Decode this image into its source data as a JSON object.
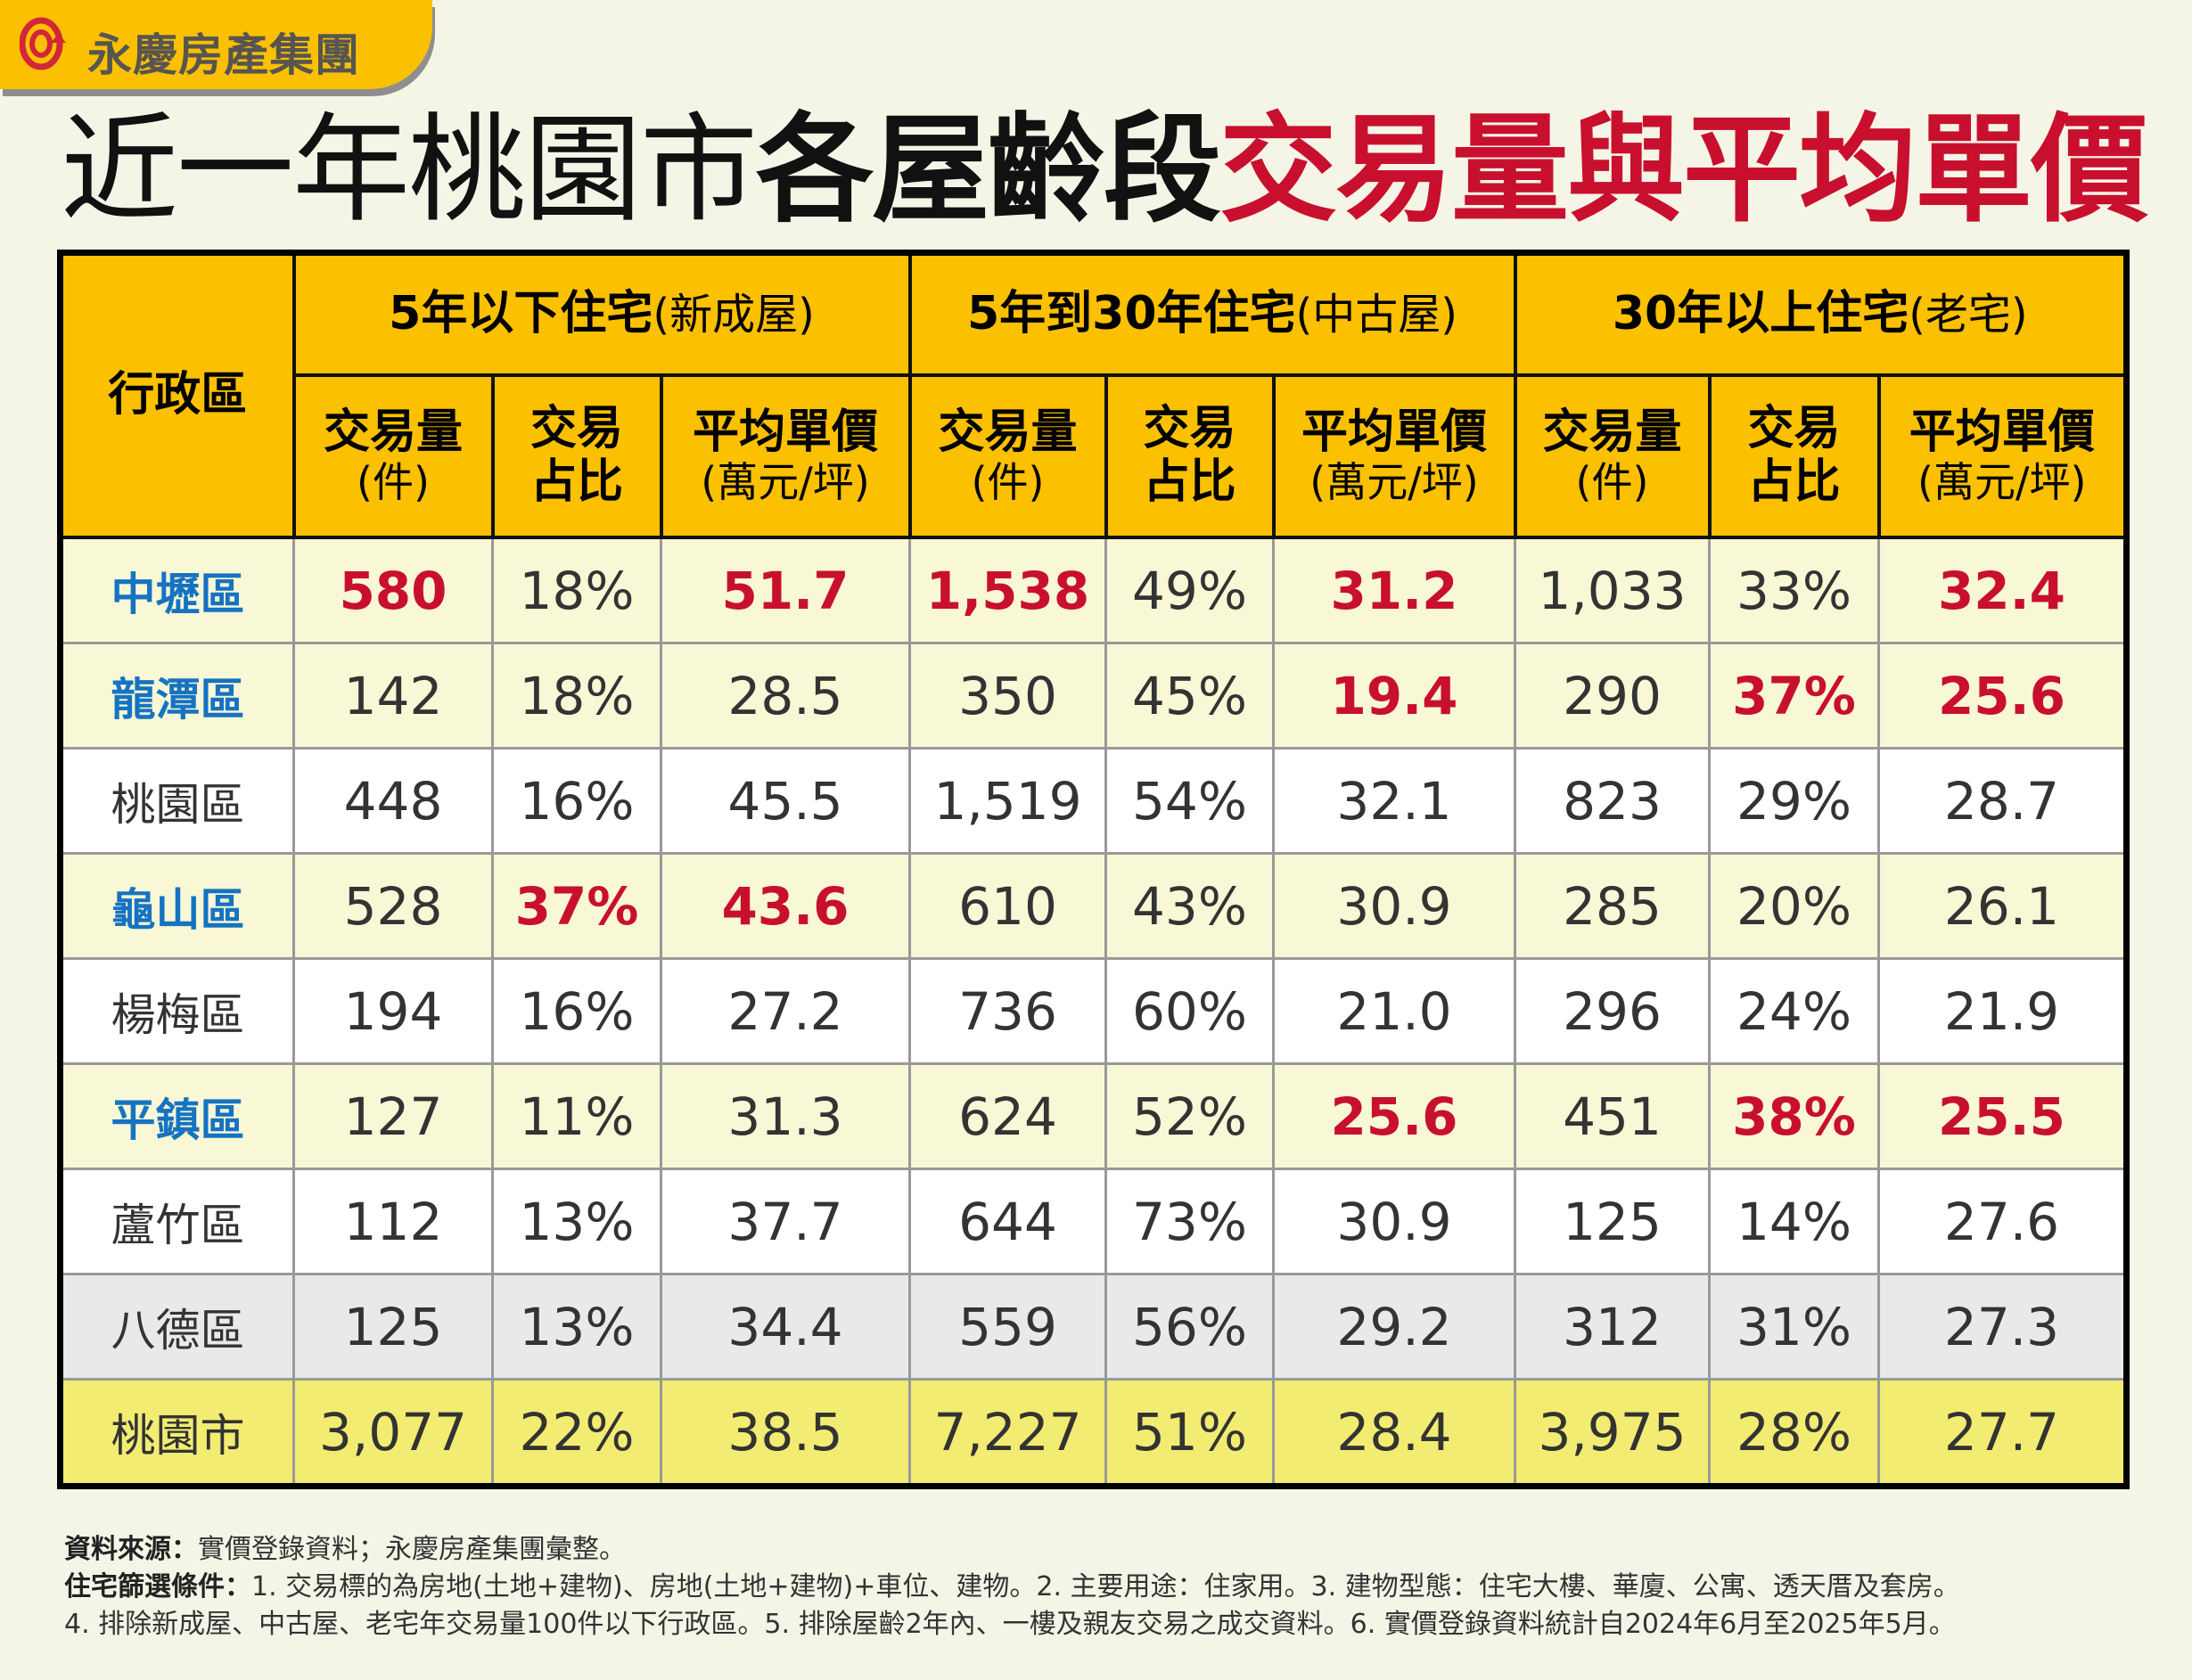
{
  "logo": {
    "text": "永慶房產集團",
    "colors": {
      "bar": "#fbc000",
      "icon": "#d2263a"
    }
  },
  "title": {
    "part1": "近一年桃園市",
    "part2": "各屋齡段",
    "part3": "交易量與平均單價"
  },
  "table": {
    "district_header": "行政區",
    "groups": [
      {
        "label": "5年以下住宅",
        "sub": "(新成屋)"
      },
      {
        "label": "5年到30年住宅",
        "sub": "(中古屋)"
      },
      {
        "label": "30年以上住宅",
        "sub": "(老宅)"
      }
    ],
    "columns": [
      {
        "label": "交易量",
        "unit": "(件)"
      },
      {
        "label": "交易占比",
        "unit": ""
      },
      {
        "label": "平均單價",
        "unit": "(萬元/坪)"
      }
    ],
    "rows": [
      {
        "name": "中壢區",
        "style": "yellow",
        "blue": true,
        "cells": [
          {
            "v": "580",
            "hl": true
          },
          {
            "v": "18%"
          },
          {
            "v": "51.7",
            "hl": true
          },
          {
            "v": "1,538",
            "hl": true
          },
          {
            "v": "49%"
          },
          {
            "v": "31.2",
            "hl": true
          },
          {
            "v": "1,033"
          },
          {
            "v": "33%"
          },
          {
            "v": "32.4",
            "hl": true
          }
        ]
      },
      {
        "name": "龍潭區",
        "style": "yellow",
        "blue": true,
        "cells": [
          {
            "v": "142"
          },
          {
            "v": "18%"
          },
          {
            "v": "28.5"
          },
          {
            "v": "350"
          },
          {
            "v": "45%"
          },
          {
            "v": "19.4",
            "hl": true
          },
          {
            "v": "290"
          },
          {
            "v": "37%",
            "hl": true
          },
          {
            "v": "25.6",
            "hl": true
          }
        ]
      },
      {
        "name": "桃園區",
        "style": "white",
        "blue": false,
        "cells": [
          {
            "v": "448"
          },
          {
            "v": "16%"
          },
          {
            "v": "45.5"
          },
          {
            "v": "1,519"
          },
          {
            "v": "54%"
          },
          {
            "v": "32.1"
          },
          {
            "v": "823"
          },
          {
            "v": "29%"
          },
          {
            "v": "28.7"
          }
        ]
      },
      {
        "name": "龜山區",
        "style": "yellow",
        "blue": true,
        "cells": [
          {
            "v": "528"
          },
          {
            "v": "37%",
            "hl": true
          },
          {
            "v": "43.6",
            "hl": true
          },
          {
            "v": "610"
          },
          {
            "v": "43%"
          },
          {
            "v": "30.9"
          },
          {
            "v": "285"
          },
          {
            "v": "20%"
          },
          {
            "v": "26.1"
          }
        ]
      },
      {
        "name": "楊梅區",
        "style": "white",
        "blue": false,
        "cells": [
          {
            "v": "194"
          },
          {
            "v": "16%"
          },
          {
            "v": "27.2"
          },
          {
            "v": "736"
          },
          {
            "v": "60%"
          },
          {
            "v": "21.0"
          },
          {
            "v": "296"
          },
          {
            "v": "24%"
          },
          {
            "v": "21.9"
          }
        ]
      },
      {
        "name": "平鎮區",
        "style": "yellow",
        "blue": true,
        "cells": [
          {
            "v": "127"
          },
          {
            "v": "11%"
          },
          {
            "v": "31.3"
          },
          {
            "v": "624"
          },
          {
            "v": "52%"
          },
          {
            "v": "25.6",
            "hl": true
          },
          {
            "v": "451"
          },
          {
            "v": "38%",
            "hl": true
          },
          {
            "v": "25.5",
            "hl": true
          }
        ]
      },
      {
        "name": "蘆竹區",
        "style": "white",
        "blue": false,
        "cells": [
          {
            "v": "112"
          },
          {
            "v": "13%"
          },
          {
            "v": "37.7"
          },
          {
            "v": "644"
          },
          {
            "v": "73%"
          },
          {
            "v": "30.9"
          },
          {
            "v": "125"
          },
          {
            "v": "14%"
          },
          {
            "v": "27.6"
          }
        ]
      },
      {
        "name": "八德區",
        "style": "grey",
        "blue": false,
        "cells": [
          {
            "v": "125"
          },
          {
            "v": "13%"
          },
          {
            "v": "34.4"
          },
          {
            "v": "559"
          },
          {
            "v": "56%"
          },
          {
            "v": "29.2"
          },
          {
            "v": "312"
          },
          {
            "v": "31%"
          },
          {
            "v": "27.3"
          }
        ]
      },
      {
        "name": "桃園市",
        "style": "total",
        "blue": false,
        "cells": [
          {
            "v": "3,077"
          },
          {
            "v": "22%"
          },
          {
            "v": "38.5"
          },
          {
            "v": "7,227"
          },
          {
            "v": "51%"
          },
          {
            "v": "28.4"
          },
          {
            "v": "3,975"
          },
          {
            "v": "28%"
          },
          {
            "v": "27.7"
          }
        ]
      }
    ]
  },
  "notes": {
    "source_label": "資料來源：",
    "source_text": "實價登錄資料；永慶房產集團彙整。",
    "filter_label": "住宅篩選條件：",
    "filter_text": "1. 交易標的為房地(土地+建物)、房地(土地+建物)+車位、建物。2. 主要用途：住家用。3. 建物型態：住宅大樓、華廈、公寓、透天厝及套房。",
    "filter_text2": "4. 排除新成屋、中古屋、老宅年交易量100件以下行政區。5. 排除屋齡2年內、一樓及親友交易之成交資料。6. 實價登錄資料統計自2024年6月至2025年5月。"
  }
}
